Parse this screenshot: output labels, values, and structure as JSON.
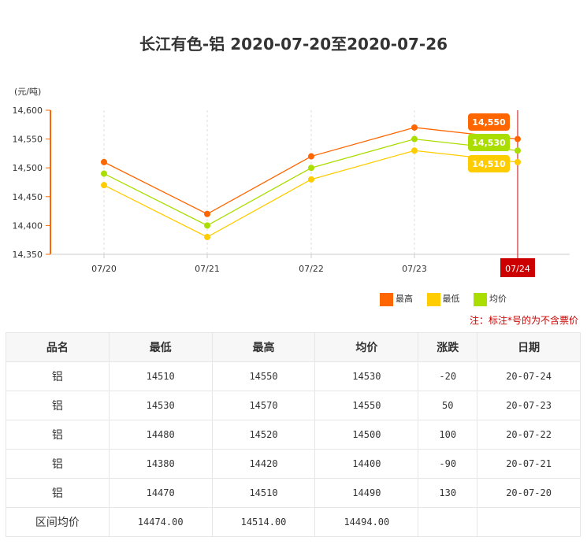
{
  "title": "长江有色-铝 2020-07-20至2020-07-26",
  "chart_data": {
    "type": "line",
    "unit_label": "(元/吨)",
    "categories": [
      "07/20",
      "07/21",
      "07/22",
      "07/23",
      "07/24"
    ],
    "yticks": [
      "14,600",
      "14,550",
      "14,500",
      "14,450",
      "14,400",
      "14,350"
    ],
    "ylim": [
      14350,
      14600
    ],
    "highlight_category": "07/24",
    "series": [
      {
        "name": "最高",
        "color": "#ff6600",
        "values": [
          14510,
          14420,
          14520,
          14570,
          14550
        ],
        "tooltip": "14,550"
      },
      {
        "name": "均价",
        "color": "#aadd00",
        "values": [
          14490,
          14400,
          14500,
          14550,
          14530
        ],
        "tooltip": "14,530"
      },
      {
        "name": "最低",
        "color": "#ffcc00",
        "values": [
          14470,
          14380,
          14480,
          14530,
          14510
        ],
        "tooltip": "14,510"
      }
    ]
  },
  "legend": [
    {
      "label": "最高",
      "color": "#ff6600"
    },
    {
      "label": "最低",
      "color": "#ffcc00"
    },
    {
      "label": "均价",
      "color": "#aadd00"
    }
  ],
  "note": "注：标注*号的为不含票价",
  "table": {
    "headers": [
      "品名",
      "最低",
      "最高",
      "均价",
      "涨跌",
      "日期"
    ],
    "rows": [
      [
        "铝",
        "14510",
        "14550",
        "14530",
        "-20",
        "20-07-24"
      ],
      [
        "铝",
        "14530",
        "14570",
        "14550",
        "50",
        "20-07-23"
      ],
      [
        "铝",
        "14480",
        "14520",
        "14500",
        "100",
        "20-07-22"
      ],
      [
        "铝",
        "14380",
        "14420",
        "14400",
        "-90",
        "20-07-21"
      ],
      [
        "铝",
        "14470",
        "14510",
        "14490",
        "130",
        "20-07-20"
      ]
    ],
    "avg_row": [
      "区间均价",
      "14474.00",
      "14514.00",
      "14494.00",
      "",
      ""
    ]
  }
}
